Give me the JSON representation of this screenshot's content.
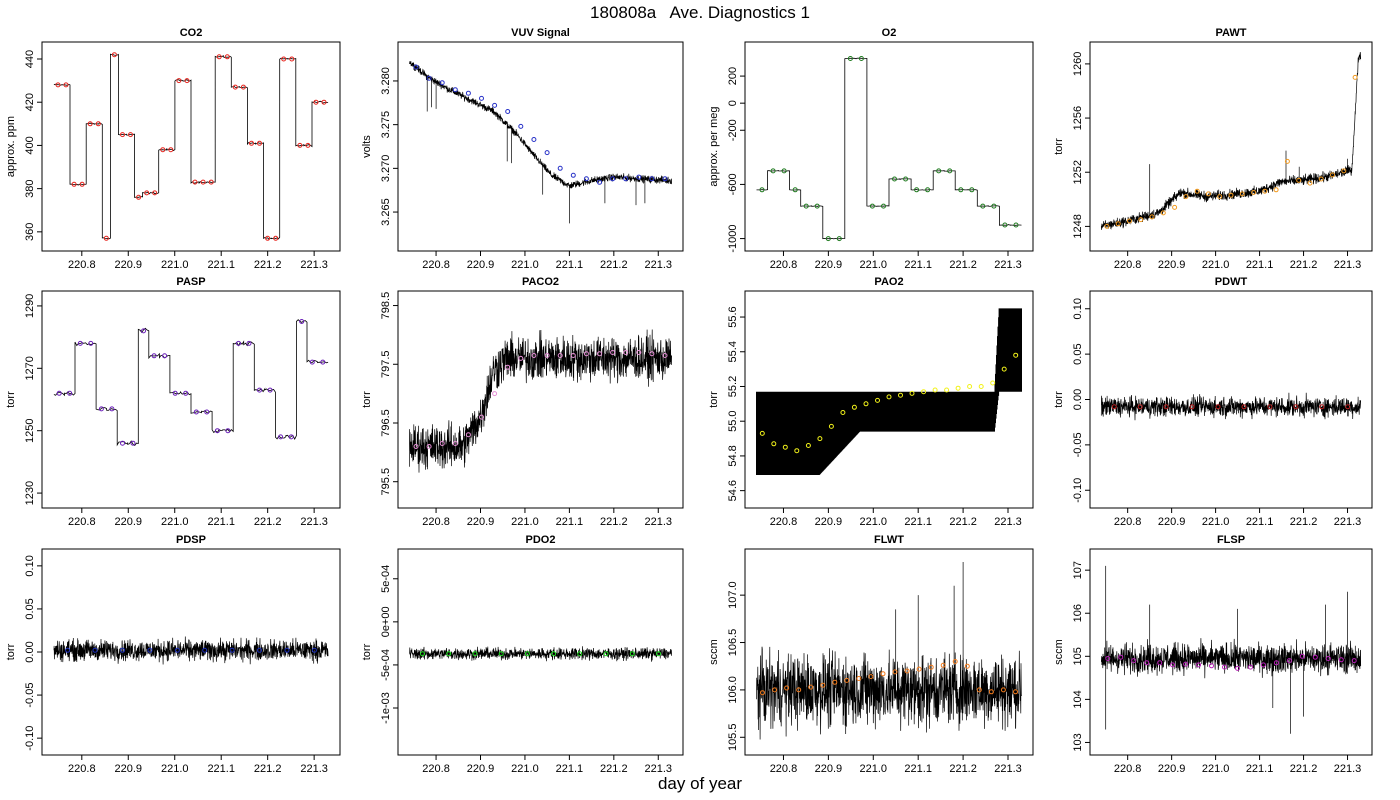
{
  "figure": {
    "title": "180808a   Ave. Diagnostics 1",
    "xlabel": "day of year"
  },
  "colors": {
    "raw_trace": "#000000",
    "frame": "#000000"
  },
  "x_ticks": [
    "220.8",
    "220.9",
    "221.0",
    "221.1",
    "221.2",
    "221.3"
  ],
  "chart_data": [
    {
      "type": "line",
      "title": "CO2",
      "ylabel": "approx. ppm",
      "xlim": [
        220.74,
        221.33
      ],
      "ylim": [
        355,
        444
      ],
      "yticks": [
        "360",
        "380",
        "400",
        "420",
        "440"
      ],
      "raw": {
        "kind": "cycle",
        "values": [
          428,
          428,
          382,
          382,
          410,
          410,
          357,
          442,
          405,
          405,
          376,
          378,
          378,
          398,
          398,
          430,
          430,
          383,
          383,
          383,
          441,
          441,
          427,
          427,
          401,
          401,
          357,
          357,
          440,
          440,
          400,
          400,
          420,
          420
        ],
        "noise": 0.6
      },
      "avg": {
        "color": "#e8231c",
        "values": [
          428,
          428,
          382,
          382,
          410,
          410,
          357,
          442,
          405,
          405,
          376,
          378,
          378,
          398,
          398,
          430,
          430,
          383,
          383,
          383,
          441,
          441,
          427,
          427,
          401,
          401,
          357,
          357,
          440,
          440,
          400,
          400,
          420,
          420
        ]
      }
    },
    {
      "type": "line",
      "title": "VUV Signal",
      "ylabel": "volts",
      "xlim": [
        220.74,
        221.33
      ],
      "ylim": [
        3.2615,
        3.2835
      ],
      "yticks": [
        "3.265",
        "3.270",
        "3.275",
        "3.280"
      ],
      "raw": {
        "kind": "piecewise",
        "points": [
          [
            220.74,
            3.2822
          ],
          [
            220.78,
            3.2805
          ],
          [
            220.83,
            3.279
          ],
          [
            220.87,
            3.278
          ],
          [
            220.93,
            3.2765
          ],
          [
            220.98,
            3.274
          ],
          [
            221.02,
            3.2715
          ],
          [
            221.06,
            3.2692
          ],
          [
            221.1,
            3.268
          ],
          [
            221.15,
            3.2686
          ],
          [
            221.2,
            3.269
          ],
          [
            221.26,
            3.2688
          ],
          [
            221.33,
            3.2686
          ]
        ],
        "spread": 0.0006,
        "spikes": [
          [
            220.78,
            3.2765
          ],
          [
            220.79,
            3.277
          ],
          [
            220.8,
            3.2768
          ],
          [
            220.96,
            3.2708
          ],
          [
            220.97,
            3.2706
          ],
          [
            221.04,
            3.267
          ],
          [
            221.1,
            3.2637
          ],
          [
            221.18,
            3.266
          ],
          [
            221.25,
            3.2658
          ],
          [
            221.27,
            3.266
          ]
        ]
      },
      "avg": {
        "color": "#2832c8",
        "values": [
          3.2816,
          3.2803,
          3.2798,
          3.279,
          3.2786,
          3.278,
          3.2772,
          3.2765,
          3.2748,
          3.2733,
          3.2718,
          3.27,
          3.2692,
          3.2688,
          3.2684,
          3.2688,
          3.2688,
          3.269,
          3.2688,
          3.2688
        ]
      }
    },
    {
      "type": "line",
      "title": "O2",
      "ylabel": "approx. per meg",
      "xlim": [
        220.74,
        221.33
      ],
      "ylim": [
        -1030,
        390
      ],
      "yticks": [
        "-1000",
        "-600",
        "-200",
        "0",
        "200"
      ],
      "raw": {
        "kind": "cycle",
        "values": [
          -640,
          -500,
          -500,
          -640,
          -760,
          -760,
          -1000,
          -1000,
          330,
          330,
          -760,
          -760,
          -560,
          -560,
          -640,
          -640,
          -500,
          -500,
          -640,
          -640,
          -760,
          -760,
          -900,
          -900
        ],
        "noise": 4
      },
      "avg": {
        "color": "#1f7a1f",
        "values": [
          -640,
          -500,
          -500,
          -640,
          -760,
          -760,
          -1000,
          -1000,
          330,
          330,
          -760,
          -760,
          -560,
          -560,
          -640,
          -640,
          -500,
          -500,
          -640,
          -640,
          -760,
          -760,
          -900,
          -900
        ]
      }
    },
    {
      "type": "line",
      "title": "PAWT",
      "ylabel": "torr",
      "xlim": [
        220.74,
        221.33
      ],
      "ylim": [
        1246.8,
        1261.0
      ],
      "yticks": [
        "1248",
        "1252",
        "1256",
        "1260"
      ],
      "raw": {
        "kind": "piecewise",
        "points": [
          [
            220.74,
            1248.0
          ],
          [
            220.8,
            1248.4
          ],
          [
            220.87,
            1249.0
          ],
          [
            220.92,
            1250.5
          ],
          [
            220.98,
            1250.2
          ],
          [
            221.05,
            1250.4
          ],
          [
            221.1,
            1250.6
          ],
          [
            221.15,
            1251.3
          ],
          [
            221.2,
            1251.4
          ],
          [
            221.26,
            1251.7
          ],
          [
            221.31,
            1252.2
          ],
          [
            221.325,
            1260.6
          ]
        ],
        "spread": 0.55,
        "spikes": [
          [
            220.85,
            1252.6
          ],
          [
            221.16,
            1253.6
          ],
          [
            221.19,
            1252.4
          ],
          [
            221.3,
            1253.0
          ]
        ]
      },
      "avg": {
        "color": "#f29a1f",
        "values": [
          1248.0,
          1248.2,
          1248.4,
          1248.5,
          1248.7,
          1249.0,
          1249.4,
          1250.2,
          1250.6,
          1250.4,
          1250.2,
          1250.3,
          1250.4,
          1250.5,
          1250.6,
          1250.7,
          1252.8,
          1251.4,
          1251.2,
          1251.5,
          1251.8,
          1252.1,
          1259.0
        ]
      }
    },
    {
      "type": "line",
      "title": "PASP",
      "ylabel": "torr",
      "xlim": [
        220.74,
        221.33
      ],
      "ylim": [
        1228,
        1292
      ],
      "yticks": [
        "1230",
        "1250",
        "1270",
        "1290"
      ],
      "raw": {
        "kind": "cycle",
        "values": [
          1262,
          1262,
          1278,
          1278,
          1257,
          1257,
          1246,
          1246,
          1282,
          1274,
          1274,
          1262,
          1262,
          1256,
          1256,
          1250,
          1250,
          1278,
          1278,
          1263,
          1263,
          1248,
          1248,
          1285,
          1272,
          1272
        ],
        "noise": 1.0
      },
      "avg": {
        "color": "#6a1fb8",
        "values": [
          1262,
          1262,
          1278,
          1278,
          1257,
          1257,
          1246,
          1246,
          1282,
          1274,
          1274,
          1262,
          1262,
          1256,
          1256,
          1250,
          1250,
          1278,
          1278,
          1263,
          1263,
          1248,
          1248,
          1285,
          1272,
          1272
        ]
      }
    },
    {
      "type": "line",
      "title": "PACO2",
      "ylabel": "torr",
      "xlim": [
        220.74,
        221.33
      ],
      "ylim": [
        795.2,
        798.6
      ],
      "yticks": [
        "795.5",
        "796.5",
        "797.5",
        "798.5"
      ],
      "raw": {
        "kind": "piecewise",
        "points": [
          [
            220.74,
            796.1
          ],
          [
            220.86,
            796.1
          ],
          [
            220.9,
            796.6
          ],
          [
            220.93,
            797.4
          ],
          [
            220.96,
            797.6
          ],
          [
            221.33,
            797.6
          ]
        ],
        "spread": 0.55
      },
      "avg": {
        "color": "#e68fd6",
        "values": [
          796.1,
          796.1,
          796.15,
          796.15,
          796.3,
          796.6,
          797.0,
          797.45,
          797.6,
          797.65,
          797.65,
          797.65,
          797.65,
          797.68,
          797.68,
          797.7,
          797.7,
          797.7,
          797.68,
          797.65
        ]
      }
    },
    {
      "type": "line",
      "title": "PAO2",
      "ylabel": "torr",
      "xlim": [
        220.74,
        221.33
      ],
      "ylim": [
        54.55,
        55.7
      ],
      "yticks": [
        "54.6",
        "54.8",
        "55.0",
        "55.2",
        "55.4",
        "55.6"
      ],
      "raw": {
        "kind": "bands",
        "points": [
          [
            220.74,
            54.69,
            55.17
          ],
          [
            220.88,
            54.69,
            55.17
          ],
          [
            220.97,
            54.94,
            55.17
          ],
          [
            221.27,
            54.94,
            55.17
          ],
          [
            221.28,
            55.17,
            55.65
          ],
          [
            221.33,
            55.17,
            55.65
          ]
        ]
      },
      "avg": {
        "color": "#f2f21a",
        "values": [
          54.93,
          54.87,
          54.85,
          54.83,
          54.86,
          54.9,
          54.97,
          55.05,
          55.08,
          55.1,
          55.12,
          55.14,
          55.15,
          55.16,
          55.17,
          55.18,
          55.18,
          55.19,
          55.2,
          55.2,
          55.22,
          55.3,
          55.38
        ]
      }
    },
    {
      "type": "line",
      "title": "PDWT",
      "ylabel": "torr",
      "xlim": [
        220.74,
        221.33
      ],
      "ylim": [
        -0.11,
        0.11
      ],
      "yticks": [
        "-0.10",
        "-0.05",
        "0.00",
        "0.05",
        "0.10"
      ],
      "raw": {
        "kind": "piecewise",
        "points": [
          [
            220.74,
            -0.008
          ],
          [
            221.33,
            -0.008
          ]
        ],
        "spread": 0.016
      },
      "avg": {
        "color": "#b82020",
        "values": [
          -0.008,
          -0.008,
          -0.008,
          -0.008,
          -0.008,
          -0.008,
          -0.008,
          -0.008,
          -0.008,
          -0.008
        ]
      }
    },
    {
      "type": "line",
      "title": "PDSP",
      "ylabel": "torr",
      "xlim": [
        220.74,
        221.33
      ],
      "ylim": [
        -0.11,
        0.11
      ],
      "yticks": [
        "-0.10",
        "-0.05",
        "0.00",
        "0.05",
        "0.10"
      ],
      "raw": {
        "kind": "piecewise",
        "points": [
          [
            220.74,
            0.002
          ],
          [
            221.33,
            0.002
          ]
        ],
        "spread": 0.018
      },
      "avg": {
        "color": "#1a2db8",
        "values": [
          0.002,
          0.002,
          0.002,
          0.002,
          0.002,
          0.002,
          0.002,
          0.002,
          0.002,
          0.002
        ]
      }
    },
    {
      "type": "line",
      "title": "PDO2",
      "ylabel": "torr",
      "xlim": [
        220.74,
        221.33
      ],
      "ylim": [
        -0.00145,
        0.00075
      ],
      "yticks": [
        "-1e-03",
        "-5e-04",
        "0e+00",
        "5e-04"
      ],
      "raw": {
        "kind": "piecewise",
        "points": [
          [
            220.74,
            -0.00037
          ],
          [
            221.33,
            -0.00037
          ]
        ],
        "spread": 0.0001
      },
      "avg": {
        "color": "#1fe01f",
        "values": [
          -0.00037,
          -0.00037,
          -0.00037,
          -0.00037,
          -0.00037,
          -0.00037,
          -0.00037,
          -0.00037,
          -0.00037,
          -0.00037
        ]
      }
    },
    {
      "type": "line",
      "title": "FLWT",
      "ylabel": "sccm",
      "xlim": [
        220.74,
        221.33
      ],
      "ylim": [
        105.4,
        107.4
      ],
      "yticks": [
        "105.5",
        "106.0",
        "106.5",
        "107.0"
      ],
      "raw": {
        "kind": "piecewise",
        "points": [
          [
            220.74,
            106.0
          ],
          [
            221.33,
            106.0
          ]
        ],
        "spread": 0.55,
        "spikes": [
          [
            221.1,
            107.0
          ],
          [
            221.18,
            107.1
          ],
          [
            221.2,
            107.35
          ],
          [
            221.05,
            106.85
          ]
        ]
      },
      "avg": {
        "color": "#f27a1a",
        "values": [
          105.97,
          106.0,
          106.02,
          106.0,
          106.03,
          106.05,
          106.08,
          106.1,
          106.12,
          106.14,
          106.17,
          106.19,
          106.2,
          106.22,
          106.24,
          106.26,
          106.3,
          106.25,
          106.0,
          105.98,
          106.0,
          105.98
        ]
      }
    },
    {
      "type": "line",
      "title": "FLSP",
      "ylabel": "sccm",
      "xlim": [
        220.74,
        221.33
      ],
      "ylim": [
        102.9,
        107.3
      ],
      "yticks": [
        "103",
        "104",
        "105",
        "106",
        "107"
      ],
      "raw": {
        "kind": "piecewise",
        "points": [
          [
            220.74,
            104.95
          ],
          [
            221.33,
            104.95
          ]
        ],
        "spread": 0.5,
        "spikes": [
          [
            220.75,
            107.1
          ],
          [
            220.75,
            103.3
          ],
          [
            221.13,
            103.8
          ],
          [
            221.2,
            103.6
          ],
          [
            221.3,
            106.5
          ],
          [
            220.85,
            106.2
          ],
          [
            221.05,
            106.1
          ],
          [
            221.17,
            103.2
          ],
          [
            221.25,
            106.2
          ]
        ]
      },
      "avg": {
        "color": "#b81fb8",
        "values": [
          104.95,
          104.98,
          104.9,
          104.85,
          104.85,
          104.8,
          104.82,
          104.8,
          104.78,
          104.75,
          104.72,
          104.75,
          104.8,
          104.85,
          104.9,
          105.0,
          104.98,
          104.95,
          104.92,
          104.9
        ]
      }
    }
  ]
}
